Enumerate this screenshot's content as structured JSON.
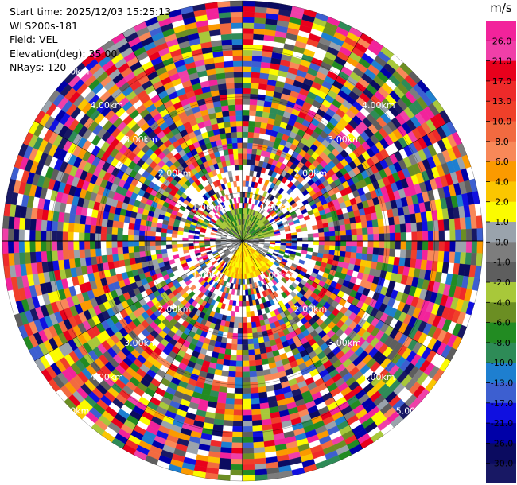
{
  "info": {
    "start_time": "Start time: 2025/12/03 15:25:13",
    "instrument": "WLS200s-181",
    "field": "Field: VEL",
    "elevation": "Elevation(deg): 35.00",
    "nrays": "NRays: 120"
  },
  "colorbar": {
    "unit": "m/s",
    "ticks": [
      "26.0",
      "21.0",
      "17.0",
      "13.0",
      "10.0",
      "8.0",
      "6.0",
      "4.0",
      "2.0",
      "1.0",
      "0.0",
      "-1.0",
      "-2.0",
      "-4.0",
      "-6.0",
      "-8.0",
      "-10.0",
      "-13.0",
      "-17.0",
      "-21.0",
      "-26.0",
      "-30.0"
    ],
    "colors": [
      "#f2239b",
      "#f03fa8",
      "#e8001c",
      "#ee2a2a",
      "#f0402a",
      "#f26a40",
      "#f88858",
      "#fb9a00",
      "#fbc600",
      "#fbfb00",
      "#9aa3ac",
      "#7d7d7d",
      "#5e5e5e",
      "#a8c83a",
      "#6b8e23",
      "#228b22",
      "#2e8b57",
      "#1e7fd0",
      "#3d5fd0",
      "#1010e0",
      "#0000a8",
      "#0b0b60",
      "#181864"
    ]
  },
  "chart_data": {
    "type": "ppi",
    "field": "VEL",
    "unit": "m/s",
    "elevation_deg": 35.0,
    "n_rays": 120,
    "max_range_km": 5.0,
    "range_rings_km": [
      1.0,
      2.0,
      3.0,
      4.0,
      5.0
    ],
    "range_labels": [
      "1.00km",
      "2.00km",
      "3.00km",
      "4.00km",
      "5.00km",
      "1.00km",
      "2.00km",
      "3.00km",
      "4.00km",
      "1.00km",
      "2.00km",
      "3.00km",
      "4.00km",
      "5.00km",
      "1.00km",
      "2.00km",
      "3.00km",
      "4.00km",
      "5.00km"
    ],
    "near_field": {
      "north_sector": "negative (green, -2 to -6 m/s)",
      "south_sector": "positive (yellow, 2 to 4 m/s)"
    },
    "colorbar_ticks": [
      26.0,
      21.0,
      17.0,
      13.0,
      10.0,
      8.0,
      6.0,
      4.0,
      2.0,
      1.0,
      0.0,
      -1.0,
      -2.0,
      -4.0,
      -6.0,
      -8.0,
      -10.0,
      -13.0,
      -17.0,
      -21.0,
      -26.0,
      -30.0
    ]
  }
}
